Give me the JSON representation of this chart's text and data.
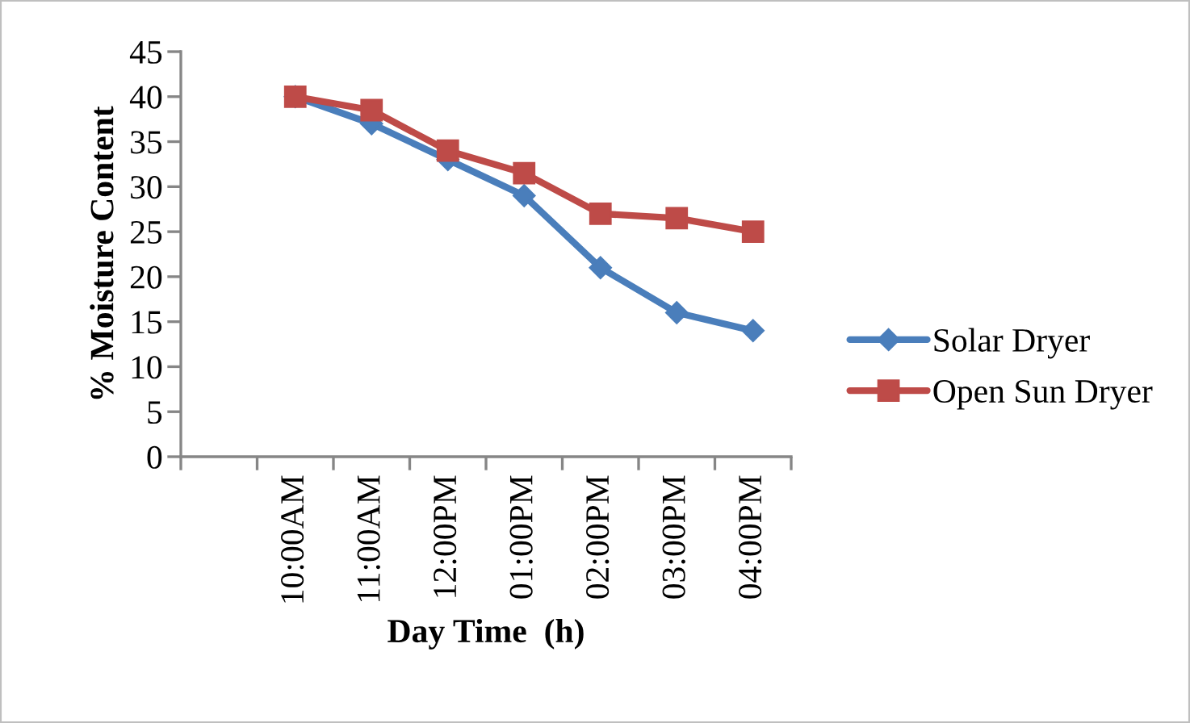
{
  "chart_data": {
    "type": "line",
    "xlabel": "Day Time  (h)",
    "ylabel": "% Moisture Content",
    "categories": [
      null,
      "10:00AM",
      "11:00AM",
      "12:00PM",
      "01:00PM",
      "02:00PM",
      "03:00PM",
      "04:00PM"
    ],
    "series": [
      {
        "name": "Solar Dryer",
        "color": "#4a7ebb",
        "marker": "diamond",
        "values": [
          null,
          40,
          37,
          33,
          29,
          21,
          16,
          14
        ]
      },
      {
        "name": "Open Sun Dryer",
        "color": "#be4b48",
        "marker": "square",
        "values": [
          null,
          40,
          38.5,
          34,
          31.5,
          27,
          26.5,
          25
        ]
      }
    ],
    "ylim": [
      0,
      45
    ],
    "yticks": [
      0,
      5,
      10,
      15,
      20,
      25,
      30,
      35,
      40,
      45
    ],
    "grid": false,
    "legend": "right",
    "line_style": "solid"
  }
}
